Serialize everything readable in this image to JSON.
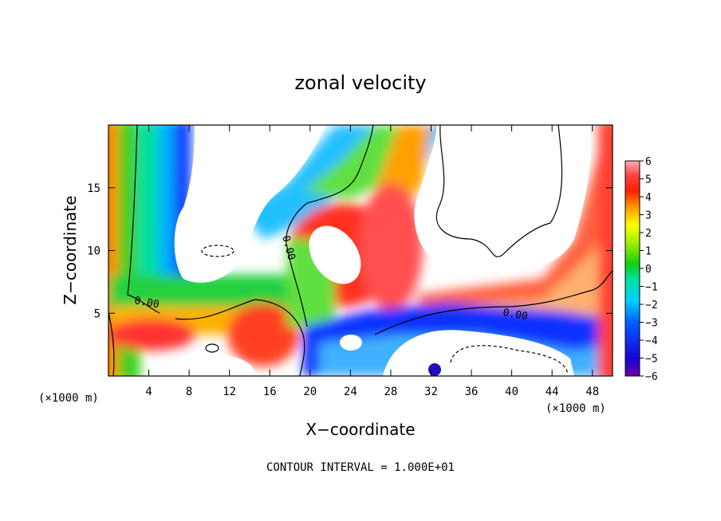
{
  "chart_data": {
    "type": "heatmap",
    "title": "zonal velocity",
    "xlabel": "X−coordinate",
    "ylabel": "Z−coordinate",
    "x_unit_label": "(×1000 m)",
    "x_unit_label_right": "(×1000 m)",
    "x_ticks": [
      4,
      8,
      12,
      16,
      20,
      24,
      28,
      32,
      36,
      40,
      44,
      48
    ],
    "y_ticks": [
      5,
      10,
      15
    ],
    "xlim": [
      0,
      50
    ],
    "ylim": [
      0,
      20
    ],
    "colorbar": {
      "ticks": [
        "6",
        "5",
        "4",
        "3",
        "2",
        "1",
        "0",
        "−1",
        "−2",
        "−3",
        "−4",
        "−5",
        "−6"
      ],
      "range": [
        -6,
        6
      ]
    },
    "contour_labels": [
      "0.00",
      "0.00",
      "0.00"
    ],
    "footnote": "CONTOUR INTERVAL = 1.000E+01"
  }
}
